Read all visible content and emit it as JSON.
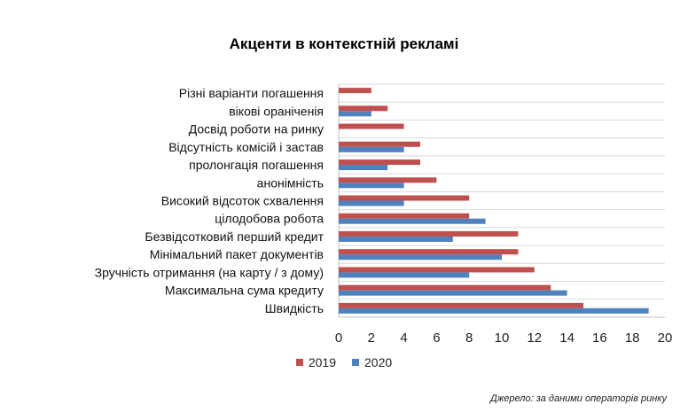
{
  "chart_data": {
    "type": "bar",
    "orientation": "horizontal",
    "title": "Акценти в контекстній рекламі",
    "categories": [
      "Різні варіанти погашення",
      "вікові ораніченія",
      "Досвід роботи на ринку",
      "Відсутність комісій і застав",
      "пролонгація погашення",
      "анонімність",
      "Високий відсоток схвалення",
      "цілодобова робота",
      "Безвідсотковий перший кредит",
      "Мінімальний пакет документів",
      "Зручність отримання (на карту / з дому)",
      "Максимальна сума кредиту",
      "Швидкість"
    ],
    "series": [
      {
        "name": "2019",
        "color": "#C0504D",
        "values": [
          2,
          3,
          4,
          5,
          5,
          6,
          8,
          8,
          11,
          11,
          12,
          13,
          15
        ]
      },
      {
        "name": "2020",
        "color": "#4F81BD",
        "values": [
          0,
          2,
          0,
          4,
          3,
          4,
          4,
          9,
          7,
          10,
          8,
          14,
          19
        ]
      }
    ],
    "xlim": [
      0,
      20
    ],
    "xticks": [
      0,
      2,
      4,
      6,
      8,
      10,
      12,
      14,
      16,
      18,
      20
    ],
    "grid": true,
    "legend_position": "bottom"
  },
  "source_note": "Джерело: за даними операторів ринку"
}
